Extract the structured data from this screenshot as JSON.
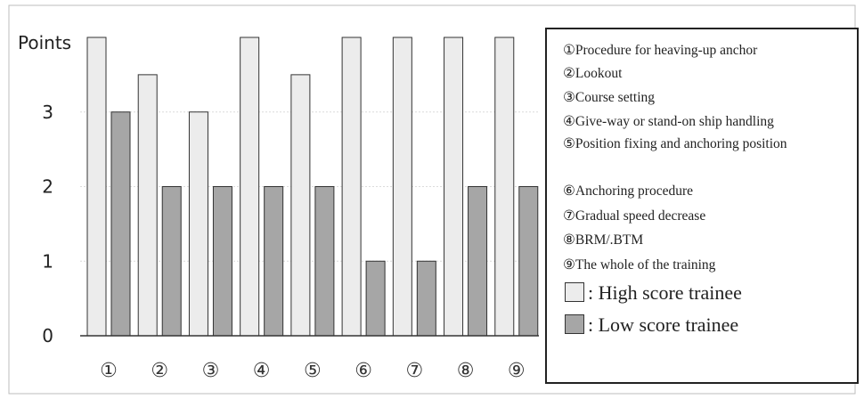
{
  "chart_data": {
    "type": "bar",
    "ylabel": "Points",
    "yticks": [
      "0",
      "1",
      "2",
      "3"
    ],
    "ylim": [
      0,
      4
    ],
    "grid": true,
    "categories": [
      "①",
      "②",
      "③",
      "④",
      "⑤",
      "⑥",
      "⑦",
      "⑧",
      "⑨"
    ],
    "series": [
      {
        "name": ": High score trainee",
        "color": "#ececec",
        "values": [
          4,
          3.5,
          3,
          4,
          3.5,
          4,
          4,
          4,
          4
        ]
      },
      {
        "name": ": Low score trainee",
        "color": "#a6a6a6",
        "values": [
          3,
          2,
          2,
          2,
          2,
          1,
          1,
          2,
          2
        ]
      }
    ],
    "legend_position": "right",
    "legend_items": [
      "①Procedure for heaving-up anchor",
      "②Lookout",
      "③Course setting",
      "④Give-way or stand-on ship handling",
      "⑤Position fixing and anchoring position",
      "⑥Anchoring procedure",
      "⑦Gradual speed decrease",
      "⑧BRM/.BTM",
      "⑨The whole of the training"
    ]
  }
}
